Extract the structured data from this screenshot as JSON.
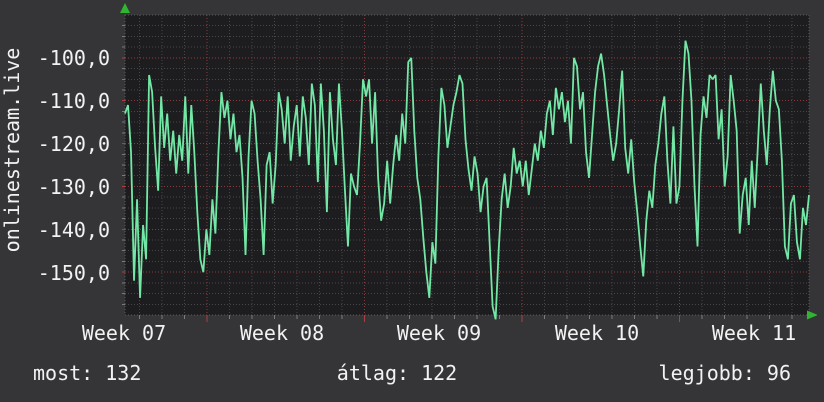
{
  "chart": {
    "vertical_label": "onlinestream.live",
    "y_ticks": [
      "-100,0",
      "-110,0",
      "-120,0",
      "-130,0",
      "-140,0",
      "-150,0"
    ],
    "x_ticks": [
      "Week 07",
      "Week 08",
      "Week 09",
      "Week 10",
      "Week 11"
    ],
    "stats": {
      "most": "most: 132",
      "atlag": "átlag: 122",
      "legjobb": "legjobb: 96"
    },
    "colors": {
      "background": "#353538",
      "plot_background": "#1d1d1f",
      "text": "#f2f2f2",
      "grid_minor": "#47474b",
      "grid_major_red": "#8a3c3c",
      "line": "#72e7a6",
      "axis_arrow": "#2fb52f"
    }
  },
  "chart_data": {
    "type": "line",
    "title": "onlinestream.live",
    "ylabel": "onlinestream.live",
    "x_axis": {
      "tick_labels": [
        "Week 07",
        "Week 08",
        "Week 09",
        "Week 10",
        "Week 11"
      ],
      "minor_grid": "daily",
      "major_grid": "weekly (red dotted)"
    },
    "y_axis": {
      "range": [
        -160,
        -90
      ],
      "major_ticks": [
        -100,
        -110,
        -120,
        -130,
        -140,
        -150
      ],
      "tick_label_format": "comma decimal, one decimal place"
    },
    "legend_position": "none",
    "grid": true,
    "summary_stats": {
      "most": 132,
      "atlag": 122,
      "legjobb": 96
    },
    "series": [
      {
        "name": "onlinestream.live",
        "color": "#72e7a6",
        "values": [
          -113,
          -111,
          -122,
          -152,
          -133,
          -156,
          -139,
          -147,
          -104,
          -108,
          -121,
          -131,
          -109,
          -121,
          -113,
          -124,
          -117,
          -127,
          -118,
          -124,
          -109,
          -127,
          -111,
          -122,
          -136,
          -147,
          -150,
          -140,
          -146,
          -133,
          -141,
          -122,
          -108,
          -114,
          -110,
          -119,
          -113,
          -122,
          -118,
          -128,
          -146,
          -123,
          -110,
          -113,
          -124,
          -133,
          -146,
          -125,
          -122,
          -134,
          -125,
          -108,
          -112,
          -120,
          -109,
          -124,
          -116,
          -111,
          -123,
          -109,
          -114,
          -125,
          -106,
          -111,
          -129,
          -106,
          -117,
          -136,
          -108,
          -119,
          -125,
          -106,
          -117,
          -131,
          -144,
          -127,
          -130,
          -132,
          -120,
          -105,
          -109,
          -105,
          -120,
          -108,
          -128,
          -138,
          -134,
          -124,
          -134,
          -125,
          -118,
          -124,
          -113,
          -120,
          -101,
          -100,
          -117,
          -128,
          -133,
          -142,
          -150,
          -156,
          -143,
          -148,
          -123,
          -107,
          -111,
          -121,
          -116,
          -111,
          -108,
          -104,
          -106,
          -119,
          -126,
          -131,
          -123,
          -127,
          -136,
          -130,
          -128,
          -143,
          -158,
          -161,
          -145,
          -133,
          -127,
          -135,
          -130,
          -121,
          -127,
          -124,
          -130,
          -124,
          -132,
          -126,
          -120,
          -124,
          -117,
          -121,
          -113,
          -110,
          -118,
          -107,
          -112,
          -108,
          -115,
          -110,
          -120,
          -100,
          -102,
          -112,
          -108,
          -122,
          -128,
          -118,
          -108,
          -102,
          -99,
          -104,
          -111,
          -118,
          -124,
          -120,
          -112,
          -103,
          -121,
          -127,
          -119,
          -129,
          -136,
          -144,
          -151,
          -138,
          -131,
          -135,
          -125,
          -120,
          -113,
          -109,
          -124,
          -134,
          -116,
          -134,
          -130,
          -110,
          -96,
          -99,
          -110,
          -130,
          -144,
          -118,
          -109,
          -114,
          -104,
          -105,
          -104,
          -119,
          -112,
          -130,
          -123,
          -104,
          -110,
          -117,
          -141,
          -132,
          -128,
          -139,
          -124,
          -135,
          -121,
          -106,
          -117,
          -125,
          -112,
          -103,
          -110,
          -112,
          -124,
          -144,
          -147,
          -134,
          -132,
          -143,
          -147,
          -135,
          -139,
          -132
        ]
      }
    ]
  }
}
